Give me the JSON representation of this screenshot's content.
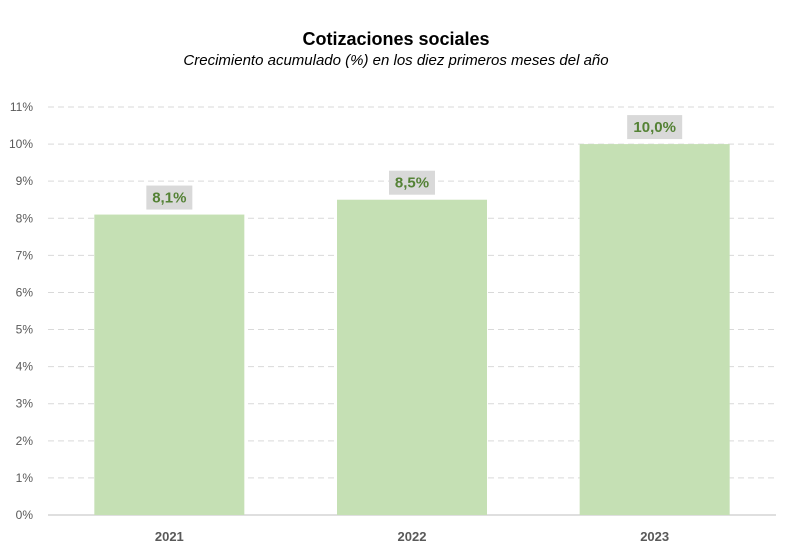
{
  "chart_data": {
    "type": "bar",
    "title": "Cotizaciones sociales",
    "subtitle": "Crecimiento acumulado (%) en los diez primeros meses del año",
    "xlabel": "",
    "ylabel": "",
    "categories": [
      "2021",
      "2022",
      "2023"
    ],
    "values": [
      8.1,
      8.5,
      10.0
    ],
    "data_labels": [
      "8,1%",
      "8,5%",
      "10,0%"
    ],
    "ylim": [
      0,
      11
    ],
    "yticks": [
      "0%",
      "1%",
      "2%",
      "3%",
      "4%",
      "5%",
      "6%",
      "7%",
      "8%",
      "9%",
      "10%",
      "11%"
    ],
    "grid": true,
    "grid_style": "dashed",
    "legend": "none",
    "colors": {
      "bar": "#c5e0b4",
      "label_text": "#548235",
      "label_box": "#d9d9d9",
      "grid": "#d9d9d9",
      "axis": "#bfbfbf",
      "tick_text": "#595959"
    }
  }
}
